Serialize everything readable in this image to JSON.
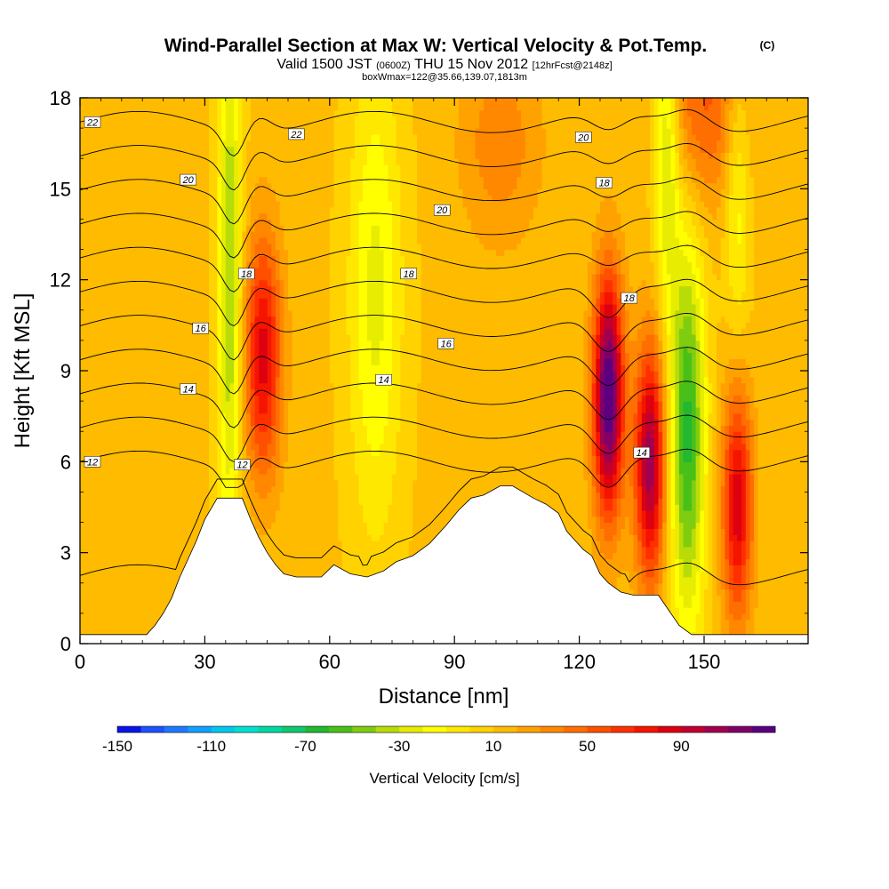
{
  "chart_data": {
    "type": "heatmap",
    "title": "Wind-Parallel Section at Max W: Vertical Velocity & Pot.Temp.",
    "title_mark": "(C)",
    "subtitle": {
      "valid": "Valid 1500 JST",
      "utc": "(0600Z)",
      "date": "THU 15 Nov 2012",
      "forecast": "[12hrFcst@2148z]"
    },
    "box_label": "boxWmax=122@35.66,139.07,1813m",
    "xlabel": "Distance [nm]",
    "ylabel": "Height [Kft MSL]",
    "xlim": [
      0,
      175
    ],
    "ylim": [
      0,
      18
    ],
    "xticks": [
      "0",
      "30",
      "60",
      "90",
      "120",
      "150"
    ],
    "yticks": [
      "0",
      "3",
      "6",
      "9",
      "12",
      "15",
      "18"
    ],
    "colorbar": {
      "label": "Vertical Velocity [cm/s]",
      "tick_labels": [
        "-150",
        "-110",
        "-70",
        "-30",
        "10",
        "50",
        "90"
      ],
      "levels": [
        -150,
        -140,
        -130,
        -120,
        -110,
        -100,
        -90,
        -80,
        -70,
        -60,
        -50,
        -40,
        -30,
        -20,
        -10,
        0,
        10,
        20,
        30,
        40,
        50,
        60,
        70,
        80,
        90,
        100,
        110,
        120
      ],
      "colors": [
        "#0a14e6",
        "#1e50ff",
        "#1e78ff",
        "#10a0ff",
        "#00c8f0",
        "#00e0d0",
        "#00d8a0",
        "#10c870",
        "#22b830",
        "#48c018",
        "#80cc10",
        "#b8dc08",
        "#e8ec00",
        "#ffff00",
        "#ffe800",
        "#ffd200",
        "#ffbb00",
        "#ffa200",
        "#ff8800",
        "#ff6e00",
        "#ff5000",
        "#ff3000",
        "#f51400",
        "#dc0010",
        "#c00030",
        "#a00050",
        "#800068",
        "#5a0080"
      ]
    },
    "terrain_profile": {
      "x": [
        0,
        16,
        18,
        20,
        22,
        24,
        26,
        28,
        30,
        33,
        39,
        41,
        43,
        45,
        47,
        49,
        52,
        58,
        61,
        65,
        69,
        73,
        76,
        80,
        84,
        86,
        88,
        91,
        94,
        97,
        101,
        104,
        109,
        112,
        115,
        117,
        119,
        121,
        123,
        125,
        127,
        130,
        133,
        139,
        142,
        144,
        147,
        150,
        152,
        175
      ],
      "height": [
        0.3,
        0.3,
        0.6,
        1.0,
        1.5,
        2.2,
        2.8,
        3.4,
        4.1,
        4.8,
        4.8,
        4.1,
        3.5,
        3.0,
        2.6,
        2.3,
        2.2,
        2.2,
        2.6,
        2.3,
        2.2,
        2.4,
        2.7,
        2.9,
        3.3,
        3.6,
        3.9,
        4.4,
        4.8,
        4.9,
        5.2,
        5.2,
        4.8,
        4.6,
        4.3,
        3.7,
        3.4,
        3.1,
        2.9,
        2.3,
        2.0,
        1.7,
        1.6,
        1.6,
        1.0,
        0.6,
        0.3,
        0.3,
        0.3,
        0.3
      ]
    },
    "updraft_features": [
      {
        "x": 127,
        "z": 8.2,
        "w": 120
      },
      {
        "x": 137,
        "z": 6.0,
        "w": 95
      },
      {
        "x": 158,
        "z": 4.6,
        "w": 75
      },
      {
        "x": 44,
        "z": 10.8,
        "w": 45
      },
      {
        "x": 44,
        "z": 8.0,
        "w": 40
      },
      {
        "x": 101,
        "z": 16.5,
        "w": 25
      },
      {
        "x": 150,
        "z": 17.8,
        "w": 40
      }
    ],
    "downdraft_features": [
      {
        "x": 36,
        "z": 12,
        "w": -55
      },
      {
        "x": 71,
        "z": 11.5,
        "w": -35
      },
      {
        "x": 146,
        "z": 7.0,
        "w": -75
      },
      {
        "x": 141,
        "z": 16.5,
        "w": -50
      },
      {
        "x": 158,
        "z": 15.0,
        "w": -30
      }
    ],
    "pot_temp_contours": {
      "levels": [
        11,
        12,
        13,
        14,
        15,
        16,
        17,
        18,
        19,
        20,
        21,
        22
      ],
      "labels": [
        {
          "text": "22",
          "x": 3,
          "z": 17.2
        },
        {
          "text": "22",
          "x": 52,
          "z": 16.8
        },
        {
          "text": "20",
          "x": 26,
          "z": 15.3
        },
        {
          "text": "20",
          "x": 87,
          "z": 14.3
        },
        {
          "text": "20",
          "x": 121,
          "z": 16.7
        },
        {
          "text": "18",
          "x": 40,
          "z": 12.2
        },
        {
          "text": "18",
          "x": 79,
          "z": 12.2
        },
        {
          "text": "18",
          "x": 126,
          "z": 15.2
        },
        {
          "text": "18",
          "x": 132,
          "z": 11.4
        },
        {
          "text": "16",
          "x": 29,
          "z": 10.4
        },
        {
          "text": "16",
          "x": 88,
          "z": 9.9
        },
        {
          "text": "14",
          "x": 26,
          "z": 8.4
        },
        {
          "text": "14",
          "x": 73,
          "z": 8.7
        },
        {
          "text": "14",
          "x": 135,
          "z": 6.3
        },
        {
          "text": "12",
          "x": 3,
          "z": 6.0
        },
        {
          "text": "12",
          "x": 39,
          "z": 5.9
        }
      ]
    }
  }
}
